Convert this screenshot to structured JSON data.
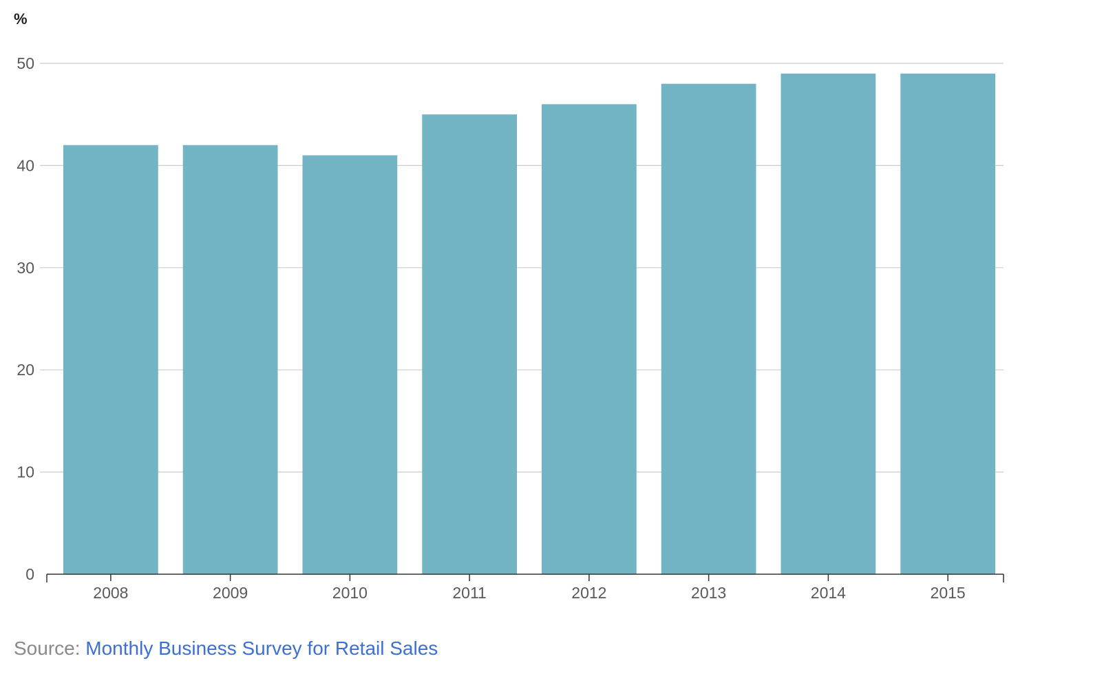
{
  "chart_data": {
    "type": "bar",
    "categories": [
      "2008",
      "2009",
      "2010",
      "2011",
      "2012",
      "2013",
      "2014",
      "2015"
    ],
    "values": [
      42,
      42,
      41,
      45,
      46,
      48,
      49,
      49
    ],
    "ylabel": "%",
    "ylim": [
      0,
      50
    ],
    "yticks": [
      0,
      10,
      20,
      30,
      40,
      50
    ],
    "grid": true,
    "bar_color": "#72b4c4",
    "grid_color": "#cccccc"
  },
  "source": {
    "prefix": "Source: ",
    "link_text": "Monthly Business Survey for Retail Sales",
    "link_color": "#3f6fd1"
  }
}
